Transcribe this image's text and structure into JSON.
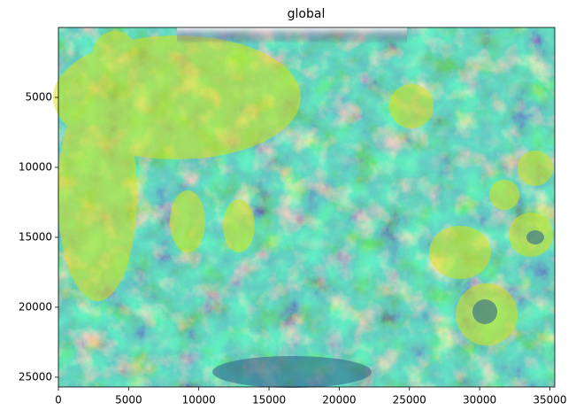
{
  "chart_data": {
    "type": "image",
    "title": "global",
    "xlim": [
      0,
      35350
    ],
    "xticks": [
      0,
      5000,
      10000,
      15000,
      20000,
      25000,
      30000,
      35000
    ],
    "ylim": [
      25700,
      0
    ],
    "yticks": [
      5000,
      10000,
      15000,
      20000,
      25000
    ],
    "colormap": "viridis"
  }
}
